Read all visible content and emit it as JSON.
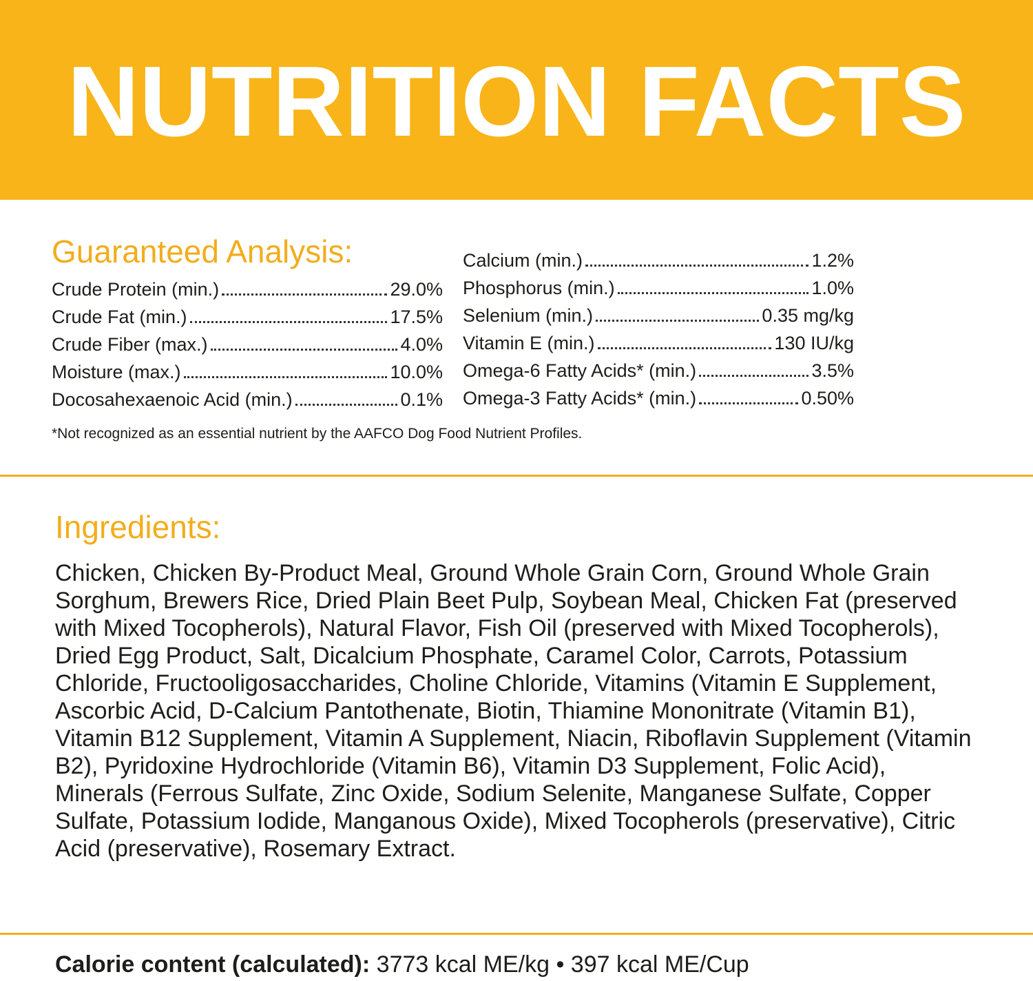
{
  "header": {
    "title": "NUTRITION FACTS"
  },
  "guaranteed_analysis": {
    "heading": "Guaranteed Analysis:",
    "left": [
      {
        "label": "Crude Protein (min.)",
        "value": "29.0%"
      },
      {
        "label": "Crude Fat (min.)",
        "value": "17.5%"
      },
      {
        "label": "Crude Fiber (max.)",
        "value": "4.0%"
      },
      {
        "label": "Moisture (max.)",
        "value": "10.0%"
      },
      {
        "label": "Docosahexaenoic Acid (min.)",
        "value": "0.1%"
      }
    ],
    "right": [
      {
        "label": "Calcium (min.)",
        "value": "1.2%"
      },
      {
        "label": "Phosphorus (min.)",
        "value": "1.0%"
      },
      {
        "label": "Selenium (min.)",
        "value": "0.35 mg/kg"
      },
      {
        "label": "Vitamin E (min.)",
        "value": "130 IU/kg"
      },
      {
        "label": "Omega-6 Fatty Acids* (min.)",
        "value": "3.5%"
      },
      {
        "label": "Omega-3 Fatty Acids* (min.)",
        "value": "0.50%"
      }
    ],
    "footnote": "*Not recognized as an essential nutrient by the AAFCO Dog Food Nutrient Profiles."
  },
  "ingredients": {
    "heading": "Ingredients:",
    "text": "Chicken, Chicken By-Product Meal, Ground Whole Grain Corn, Ground Whole Grain Sorghum, Brewers Rice, Dried Plain Beet Pulp, Soybean Meal, Chicken Fat (preserved with Mixed Tocopherols), Natural Flavor, Fish Oil (preserved with Mixed Tocopherols), Dried Egg Product, Salt, Dicalcium Phosphate, Caramel Color, Carrots, Potassium Chloride, Fructooligosaccharides, Choline Chloride, Vitamins (Vitamin E Supplement, Ascorbic Acid, D-Calcium Pantothenate, Biotin, Thiamine Mononitrate (Vitamin B1), Vitamin B12 Supplement, Vitamin A Supplement, Niacin, Riboflavin Supplement (Vitamin B2), Pyridoxine Hydrochloride (Vitamin B6), Vitamin D3 Supplement, Folic Acid), Minerals (Ferrous Sulfate, Zinc Oxide, Sodium Selenite, Manganese Sulfate, Copper Sulfate, Potassium Iodide, Manganous Oxide), Mixed Tocopherols (preservative), Citric Acid (preservative), Rosemary Extract."
  },
  "calorie_content": {
    "label": "Calorie content (calculated):",
    "value": "3773 kcal ME/kg • 397 kcal ME/Cup"
  }
}
